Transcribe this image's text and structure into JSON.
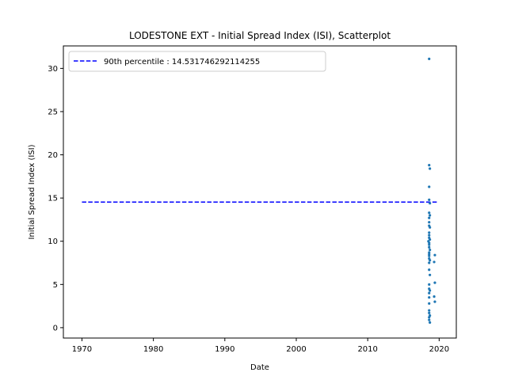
{
  "chart_data": {
    "type": "scatter",
    "title": "LODESTONE EXT - Initial Spread Index (ISI), Scatterplot",
    "xlabel": "Date",
    "ylabel": "Initial Spread Index (ISI)",
    "xlim": [
      1967.4,
      2022.4
    ],
    "ylim": [
      -1.2,
      32.6
    ],
    "xticks": [
      1970,
      1980,
      1990,
      2000,
      2010,
      2020
    ],
    "yticks": [
      0,
      5,
      10,
      15,
      20,
      25,
      30
    ],
    "grid": false,
    "legend_position": "top-left",
    "reference_line": {
      "label": "90th percentile : 14.531746292114255",
      "y": 14.531746292114255,
      "x_range": [
        1970,
        2019.7
      ],
      "color": "#0000ff",
      "style": "dashed"
    },
    "series": [
      {
        "color": "#1f77b4",
        "points": [
          [
            2018.6,
            31.1
          ],
          [
            2018.6,
            18.8
          ],
          [
            2018.7,
            18.4
          ],
          [
            2018.6,
            16.3
          ],
          [
            2018.6,
            14.8
          ],
          [
            2018.7,
            14.4
          ],
          [
            2018.6,
            13.3
          ],
          [
            2018.7,
            13.0
          ],
          [
            2018.6,
            12.7
          ],
          [
            2018.6,
            12.2
          ],
          [
            2018.6,
            11.8
          ],
          [
            2018.7,
            11.6
          ],
          [
            2018.6,
            11.0
          ],
          [
            2018.6,
            10.7
          ],
          [
            2018.6,
            10.4
          ],
          [
            2018.7,
            10.2
          ],
          [
            2018.5,
            10.0
          ],
          [
            2018.6,
            9.8
          ],
          [
            2018.6,
            9.6
          ],
          [
            2018.6,
            9.3
          ],
          [
            2018.7,
            9.0
          ],
          [
            2018.6,
            8.7
          ],
          [
            2018.6,
            8.5
          ],
          [
            2018.6,
            8.3
          ],
          [
            2019.4,
            8.4
          ],
          [
            2018.6,
            8.0
          ],
          [
            2018.7,
            7.8
          ],
          [
            2019.3,
            7.6
          ],
          [
            2018.6,
            7.5
          ],
          [
            2018.6,
            6.7
          ],
          [
            2018.7,
            6.1
          ],
          [
            2019.4,
            5.2
          ],
          [
            2018.6,
            5.0
          ],
          [
            2018.6,
            4.5
          ],
          [
            2018.7,
            4.3
          ],
          [
            2018.6,
            4.0
          ],
          [
            2019.3,
            3.6
          ],
          [
            2018.6,
            3.5
          ],
          [
            2019.4,
            3.0
          ],
          [
            2018.6,
            2.8
          ],
          [
            2018.6,
            2.0
          ],
          [
            2018.6,
            1.7
          ],
          [
            2018.7,
            1.4
          ],
          [
            2018.6,
            1.2
          ],
          [
            2018.6,
            0.9
          ],
          [
            2018.7,
            0.6
          ]
        ]
      }
    ]
  }
}
